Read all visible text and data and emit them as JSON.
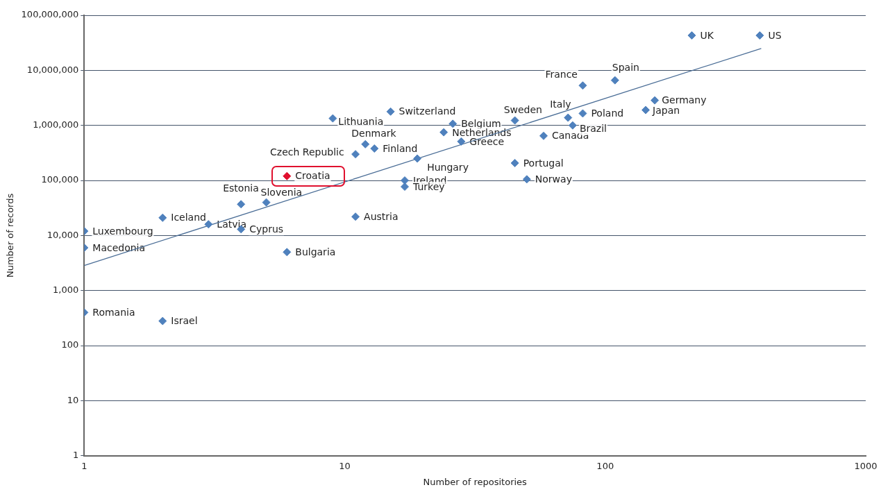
{
  "chart_data": {
    "type": "scatter",
    "xlabel": "Number of repositories",
    "ylabel": "Number of records",
    "log": "xy",
    "grid": "y",
    "legend": false,
    "marker": "diamond",
    "xlim": [
      1,
      1000
    ],
    "xticks": [
      1,
      10,
      100,
      1000
    ],
    "ylim": [
      1,
      100000000
    ],
    "yticks": [
      1,
      10,
      100,
      {
        "value": 1000,
        "label": "1,000"
      },
      {
        "value": 10000,
        "label": "10,000"
      },
      {
        "value": 100000,
        "label": "100,000"
      },
      {
        "value": 1000000,
        "label": "1,000,000"
      },
      {
        "value": 10000000,
        "label": "10,000,000"
      },
      {
        "value": 100000000,
        "label": "100,000,000"
      }
    ],
    "series": [
      {
        "color": "#4f81bd",
        "x": [
          1,
          1,
          1,
          2,
          2,
          3,
          4,
          4,
          5,
          6,
          6,
          9,
          11,
          12,
          13,
          11,
          15,
          19,
          17,
          17,
          26,
          24,
          28,
          45,
          45,
          50,
          58,
          72,
          75,
          82,
          82,
          109,
          155,
          143,
          215,
          392
        ],
        "values": [
          12000,
          6000,
          400,
          280,
          21000,
          16000,
          13000,
          37000,
          40000,
          5000,
          120000,
          1340000,
          300000,
          455000,
          380000,
          22000,
          1780000,
          250000,
          100000,
          77000,
          1070000,
          750000,
          510000,
          1230000,
          207000,
          105000,
          645000,
          1380000,
          1000000,
          5300000,
          1650000,
          6600000,
          2850000,
          1900000,
          43000000,
          43000000
        ],
        "colors": [
          "#4f81bd",
          "#4f81bd",
          "#4f81bd",
          "#4f81bd",
          "#4f81bd",
          "#4f81bd",
          "#4f81bd",
          "#4f81bd",
          "#4f81bd",
          "#4f81bd",
          "#e0102e",
          "#4f81bd",
          "#4f81bd",
          "#4f81bd",
          "#4f81bd",
          "#4f81bd",
          "#4f81bd",
          "#4f81bd",
          "#4f81bd",
          "#4f81bd",
          "#4f81bd",
          "#4f81bd",
          "#4f81bd",
          "#4f81bd",
          "#4f81bd",
          "#4f81bd",
          "#4f81bd",
          "#4f81bd",
          "#4f81bd",
          "#4f81bd",
          "#4f81bd",
          "#4f81bd",
          "#4f81bd",
          "#4f81bd",
          "#4f81bd",
          "#4f81bd"
        ]
      },
      {
        "type": "line",
        "color": "#4a6d96",
        "marker": "none",
        "x": [
          1,
          397
        ],
        "values": [
          2860,
          25000000
        ]
      }
    ],
    "annotations": [
      {
        "text": "Luxembourg",
        "x": 1,
        "y": 12000
      },
      {
        "text": "Macedonia",
        "x": 1,
        "y": 6000
      },
      {
        "text": "Romania",
        "x": 1,
        "y": 400
      },
      {
        "text": "Israel",
        "x": 2,
        "y": 280
      },
      {
        "text": "Iceland",
        "x": 2,
        "y": 21000
      },
      {
        "text": "Latvia",
        "x": 3,
        "y": 16000
      },
      {
        "text": "Cyprus",
        "x": 4,
        "y": 13000
      },
      {
        "text": "Estonia",
        "x": 4,
        "y": 37000
      },
      {
        "text": "Slovenia",
        "x": 5,
        "y": 40000
      },
      {
        "text": "Bulgaria",
        "x": 6,
        "y": 5000
      },
      {
        "text": "Croatia",
        "x": 6,
        "y": 120000
      },
      {
        "text": "Lithuania",
        "x": 9,
        "y": 1340000
      },
      {
        "text": "Czech Republic",
        "x": 11,
        "y": 300000
      },
      {
        "text": "Denmark",
        "x": 12,
        "y": 455000
      },
      {
        "text": "Finland",
        "x": 13,
        "y": 380000
      },
      {
        "text": "Austria",
        "x": 11,
        "y": 22000
      },
      {
        "text": "Switzerland",
        "x": 15,
        "y": 1780000
      },
      {
        "text": "Hungary",
        "x": 19,
        "y": 250000
      },
      {
        "text": "Ireland",
        "x": 17,
        "y": 100000
      },
      {
        "text": "Turkey",
        "x": 17,
        "y": 77000
      },
      {
        "text": "Belgium",
        "x": 26,
        "y": 1070000
      },
      {
        "text": "Netherlands",
        "x": 24,
        "y": 750000
      },
      {
        "text": "Greece",
        "x": 28,
        "y": 510000
      },
      {
        "text": "Sweden",
        "x": 45,
        "y": 1230000
      },
      {
        "text": "Portugal",
        "x": 45,
        "y": 207000
      },
      {
        "text": "Norway",
        "x": 50,
        "y": 105000
      },
      {
        "text": "Canada",
        "x": 58,
        "y": 645000
      },
      {
        "text": "Italy",
        "x": 72,
        "y": 1380000
      },
      {
        "text": "Brazil",
        "x": 75,
        "y": 1000000
      },
      {
        "text": "France",
        "x": 82,
        "y": 5300000
      },
      {
        "text": "Poland",
        "x": 82,
        "y": 1650000
      },
      {
        "text": "Spain",
        "x": 109,
        "y": 6600000
      },
      {
        "text": "Germany",
        "x": 155,
        "y": 2850000
      },
      {
        "text": "Japan",
        "x": 143,
        "y": 1900000
      },
      {
        "text": "UK",
        "x": 215,
        "y": 43000000
      },
      {
        "text": "US",
        "x": 392,
        "y": 43000000
      }
    ]
  }
}
